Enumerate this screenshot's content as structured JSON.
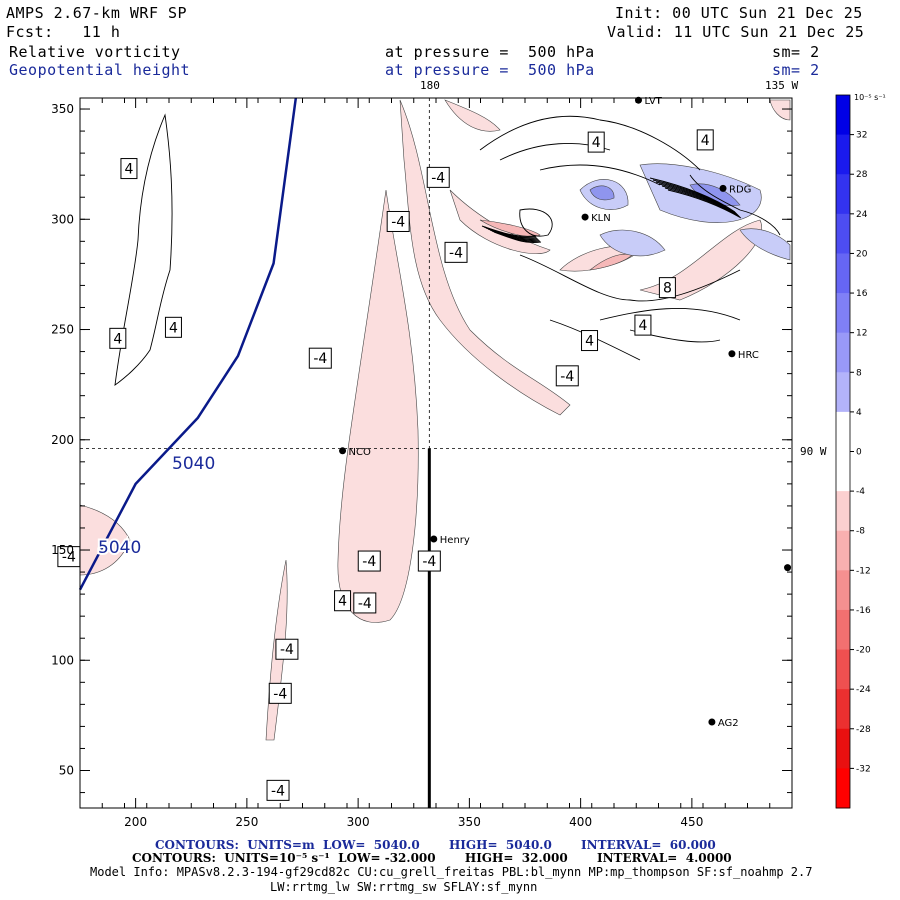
{
  "header": {
    "model": "AMPS 2.67-km WRF SP",
    "init": "Init: 00 UTC Sun 21 Dec 25",
    "fcst": "Fcst:   11 h",
    "valid": "Valid: 11 UTC Sun 21 Dec 25",
    "field1": "Relative vorticity",
    "field1_level": "at pressure =  500 hPa",
    "field1_sm": "sm= 2",
    "field2": "Geopotential height",
    "field2_level": "at pressure =  500 hPa",
    "field2_sm": "sm= 2"
  },
  "map_labels": {
    "lon_180": "180",
    "lon_135w": "135 W",
    "lon_90w": "90 W",
    "stations": [
      "LVT",
      "RDG",
      "KLN",
      "HRC",
      "NCO",
      "Henry",
      "AG2"
    ]
  },
  "colorbar": {
    "unit": "10⁻⁵ s⁻¹",
    "ticks": [
      "32",
      "28",
      "24",
      "20",
      "16",
      "12",
      "8",
      "4",
      "0",
      "-4",
      "-8",
      "-12",
      "-16",
      "-20",
      "-24",
      "-28",
      "-32"
    ],
    "colors": [
      "#0000e6",
      "#1a1aee",
      "#3333f0",
      "#4d4df2",
      "#6666f4",
      "#8080f6",
      "#9999f8",
      "#b3b3fa",
      "#ffffff",
      "#ffffff",
      "#fbd0d0",
      "#f8b0b0",
      "#f59090",
      "#f27070",
      "#ef5050",
      "#ec3030",
      "#e91010",
      "#ff0000"
    ]
  },
  "footer": {
    "line1": "CONTOURS:  UNITS=m  LOW=  5040.0       HIGH=  5040.0       INTERVAL=  60.000",
    "line2": "CONTOURS:  UNITS=10⁻⁵ s⁻¹  LOW= -32.000       HIGH=  32.000       INTERVAL=  4.0000",
    "line3": "Model Info: MPASv8.2.3-194-gf29cd82c CU:cu_grell_freitas PBL:bl_mynn MP:mp_thompson SF:sf_noahmp 2.7",
    "line4": "LW:rrtmg_lw SW:rrtmg_sw SFLAY:sf_mynn"
  },
  "chart_data": {
    "type": "contour",
    "title": "Relative vorticity / Geopotential height at 500 hPa",
    "xlabel": "",
    "ylabel": "",
    "xlim": [
      175,
      495
    ],
    "ylim": [
      33,
      355
    ],
    "x_ticks": [
      200,
      250,
      300,
      350,
      400,
      450
    ],
    "y_ticks": [
      50,
      100,
      150,
      200,
      250,
      300,
      350
    ],
    "height_contours": [
      {
        "level": "5040",
        "points": [
          [
            272,
            355
          ],
          [
            262,
            280
          ],
          [
            246,
            238
          ],
          [
            228,
            210
          ],
          [
            200,
            180
          ],
          [
            175,
            132
          ]
        ]
      }
    ],
    "vorticity_labels": [
      {
        "value": "4",
        "x": 197,
        "y": 323
      },
      {
        "value": "4",
        "x": 192,
        "y": 246
      },
      {
        "value": "4",
        "x": 217,
        "y": 251
      },
      {
        "value": "4",
        "x": 407,
        "y": 335
      },
      {
        "value": "4",
        "x": 404,
        "y": 245
      },
      {
        "value": "4",
        "x": 428,
        "y": 252
      },
      {
        "value": "4",
        "x": 456,
        "y": 336
      },
      {
        "value": "4",
        "x": 293,
        "y": 127
      },
      {
        "value": "8",
        "x": 439,
        "y": 269
      },
      {
        "value": "-4",
        "x": 336,
        "y": 319
      },
      {
        "value": "-4",
        "x": 318,
        "y": 299
      },
      {
        "value": "-4",
        "x": 344,
        "y": 285
      },
      {
        "value": "-4",
        "x": 283,
        "y": 237
      },
      {
        "value": "-4",
        "x": 394,
        "y": 229
      },
      {
        "value": "-4",
        "x": 170,
        "y": 147
      },
      {
        "value": "-4",
        "x": 305,
        "y": 145
      },
      {
        "value": "-4",
        "x": 332,
        "y": 145
      },
      {
        "value": "-4",
        "x": 303,
        "y": 126
      },
      {
        "value": "-4",
        "x": 268,
        "y": 105
      },
      {
        "value": "-4",
        "x": 265,
        "y": 85
      },
      {
        "value": "-4",
        "x": 264,
        "y": 41
      }
    ],
    "stations": [
      {
        "name": "LVT",
        "x": 426,
        "y": 354
      },
      {
        "name": "RDG",
        "x": 464,
        "y": 314
      },
      {
        "name": "KLN",
        "x": 402,
        "y": 301
      },
      {
        "name": "HRC",
        "x": 468,
        "y": 239
      },
      {
        "name": "NCO",
        "x": 293,
        "y": 195
      },
      {
        "name": "Henry",
        "x": 334,
        "y": 155
      },
      {
        "name": "AG2",
        "x": 459,
        "y": 72
      },
      {
        "name": "",
        "x": 493,
        "y": 142
      }
    ],
    "reference_lines": {
      "lon180_x": 332,
      "lon90w_y": 196
    }
  }
}
